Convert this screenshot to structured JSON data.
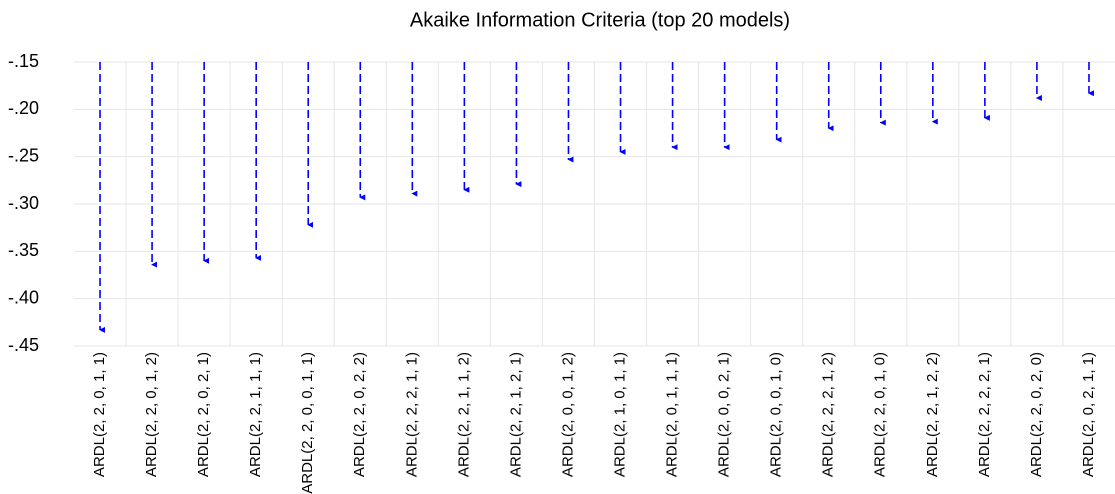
{
  "chart_data": {
    "type": "dropline",
    "title": "Akaike Information Criteria (top 20 models)",
    "categories": [
      "ARDL(2, 2, 0, 1, 1)",
      "ARDL(2, 2, 0, 1, 2)",
      "ARDL(2, 2, 0, 2, 1)",
      "ARDL(2, 2, 1, 1, 1)",
      "ARDL(2, 2, 0, 0, 1, 1)",
      "ARDL(2, 2, 0, 2, 2)",
      "ARDL(2, 2, 2, 1, 1)",
      "ARDL(2, 2, 1, 1, 2)",
      "ARDL(2, 2, 1, 2, 1)",
      "ARDL(2, 0, 0, 1, 2)",
      "ARDL(2, 1, 0, 1, 1)",
      "ARDL(2, 0, 1, 1, 1)",
      "ARDL(2, 0, 0, 2, 1)",
      "ARDL(2, 0, 0, 1, 0)",
      "ARDL(2, 2, 2, 1, 2)",
      "ARDL(2, 2, 0, 1, 0)",
      "ARDL(2, 2, 1, 2, 2)",
      "ARDL(2, 2, 2, 2, 1)",
      "ARDL(2, 2, 0, 2, 0)",
      "ARDL(2, 0, 2, 1, 1)"
    ],
    "values": [
      -0.433,
      -0.364,
      -0.36,
      -0.357,
      -0.322,
      -0.293,
      -0.289,
      -0.285,
      -0.279,
      -0.253,
      -0.245,
      -0.24,
      -0.24,
      -0.232,
      -0.22,
      -0.214,
      -0.213,
      -0.209,
      -0.188,
      -0.183
    ],
    "color": "#0000ff",
    "ylim": [
      -0.45,
      -0.15
    ],
    "yticks": [
      {
        "value": -0.15,
        "label": "-.15"
      },
      {
        "value": -0.2,
        "label": "-.20"
      },
      {
        "value": -0.25,
        "label": "-.25"
      },
      {
        "value": -0.3,
        "label": "-.30"
      },
      {
        "value": -0.35,
        "label": "-.35"
      },
      {
        "value": -0.4,
        "label": "-.40"
      },
      {
        "value": -0.45,
        "label": "-.45"
      }
    ],
    "grid": true
  }
}
